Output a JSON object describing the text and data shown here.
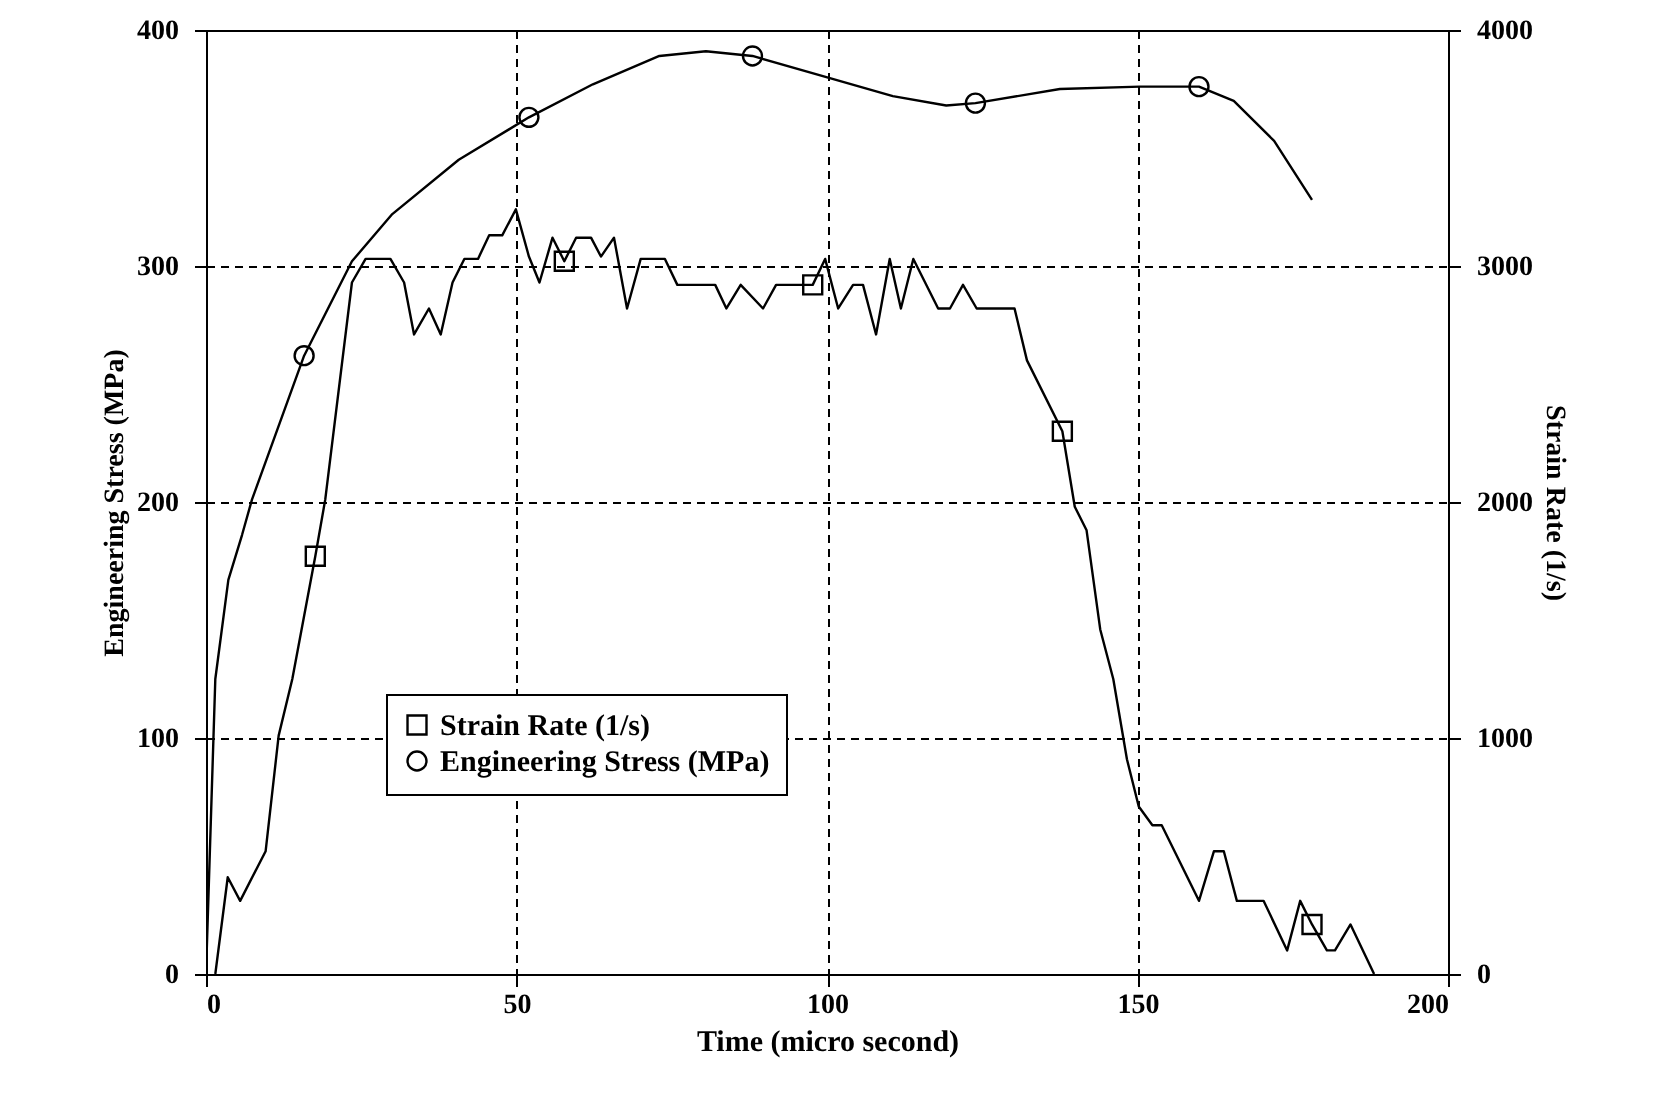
{
  "chart_data": {
    "type": "line",
    "xlabel": "Time (micro second)",
    "ylabel": "Engineering Stress (MPa)",
    "y2label": "Strain Rate (1/s)",
    "xlim": [
      0,
      200
    ],
    "xticks": [
      0,
      50,
      100,
      150,
      200
    ],
    "ylim": [
      0,
      400
    ],
    "yticks": [
      0,
      100,
      200,
      300,
      400
    ],
    "y2lim": [
      0,
      4000
    ],
    "y2ticks": [
      0,
      1000,
      2000,
      3000,
      4000
    ],
    "grid": true,
    "legend": "bottom left",
    "line_style": "solid",
    "series": [
      {
        "axis": "y2",
        "color": "#000000",
        "x": [
          1.5,
          3.5,
          5.5,
          9.6,
          11.7,
          13.9,
          17.6,
          19.2,
          23.5,
          25.7,
          29.7,
          31.9,
          33.5,
          35.9,
          37.8,
          39.7,
          41.6,
          43.8,
          45.6,
          47.7,
          49.9,
          52,
          53.7,
          55.8,
          57.7,
          59.6,
          62,
          63.6,
          65.7,
          67.8,
          70,
          73.9,
          75.9,
          82,
          83.8,
          86.1,
          89.7,
          91.8,
          97.7,
          99.7,
          101.8,
          104.2,
          105.8,
          107.9,
          110.1,
          111.9,
          113.9,
          117.9,
          119.8,
          121.9,
          124.1,
          130.2,
          132.2,
          137.9,
          139.9,
          141.8,
          144,
          146.1,
          148.3,
          150.2,
          152.4,
          153.9,
          159.9,
          162.3,
          163.9,
          166,
          170.3,
          174.1,
          176.2,
          178.1,
          180.5,
          181.8,
          184.3,
          188.1
        ],
        "values": [
          0,
          410,
          310,
          520,
          1010,
          1250,
          1770,
          2010,
          2930,
          3030,
          3030,
          2930,
          2710,
          2820,
          2710,
          2930,
          3030,
          3030,
          3130,
          3130,
          3240,
          3040,
          2930,
          3120,
          3020,
          3120,
          3120,
          3040,
          3120,
          2820,
          3030,
          3030,
          2920,
          2920,
          2820,
          2920,
          2820,
          2920,
          2920,
          3030,
          2820,
          2920,
          2920,
          2710,
          3030,
          2820,
          3030,
          2820,
          2820,
          2920,
          2820,
          2820,
          2600,
          2300,
          1980,
          1880,
          1460,
          1250,
          910,
          710,
          630,
          630,
          310,
          520,
          520,
          310,
          310,
          100,
          310,
          210,
          100,
          100,
          210,
          0
        ]
      },
      {
        "type": "scatter",
        "axis": "y2",
        "name": "Strain Rate (1/s)",
        "color": "#000000",
        "marker": "square",
        "x": [
          17.6,
          57.7,
          97.7,
          137.9,
          178.1
        ],
        "values": [
          1770,
          3020,
          2920,
          2300,
          210
        ]
      },
      {
        "axis": "y",
        "color": "#000000",
        "x": [
          0,
          1.5,
          3.6,
          5.8,
          7.4,
          15.8,
          23.5,
          30,
          40.7,
          52,
          62.3,
          73,
          80.5,
          88,
          99.9,
          110.6,
          119.2,
          123.9,
          137.5,
          150.4,
          159.9,
          165.5,
          172,
          178.1
        ],
        "values": [
          0,
          125,
          167,
          186,
          201,
          262,
          302,
          322,
          345,
          363,
          377,
          389,
          391,
          389,
          380,
          372,
          368,
          369,
          375,
          376,
          376,
          370,
          353,
          328
        ]
      },
      {
        "type": "scatter",
        "axis": "y",
        "name": "Engineering Stress (MPa)",
        "color": "#000000",
        "marker": "circle",
        "x": [
          15.8,
          52,
          88,
          123.9,
          159.9
        ],
        "values": [
          262,
          363,
          389,
          369,
          376
        ]
      }
    ]
  }
}
